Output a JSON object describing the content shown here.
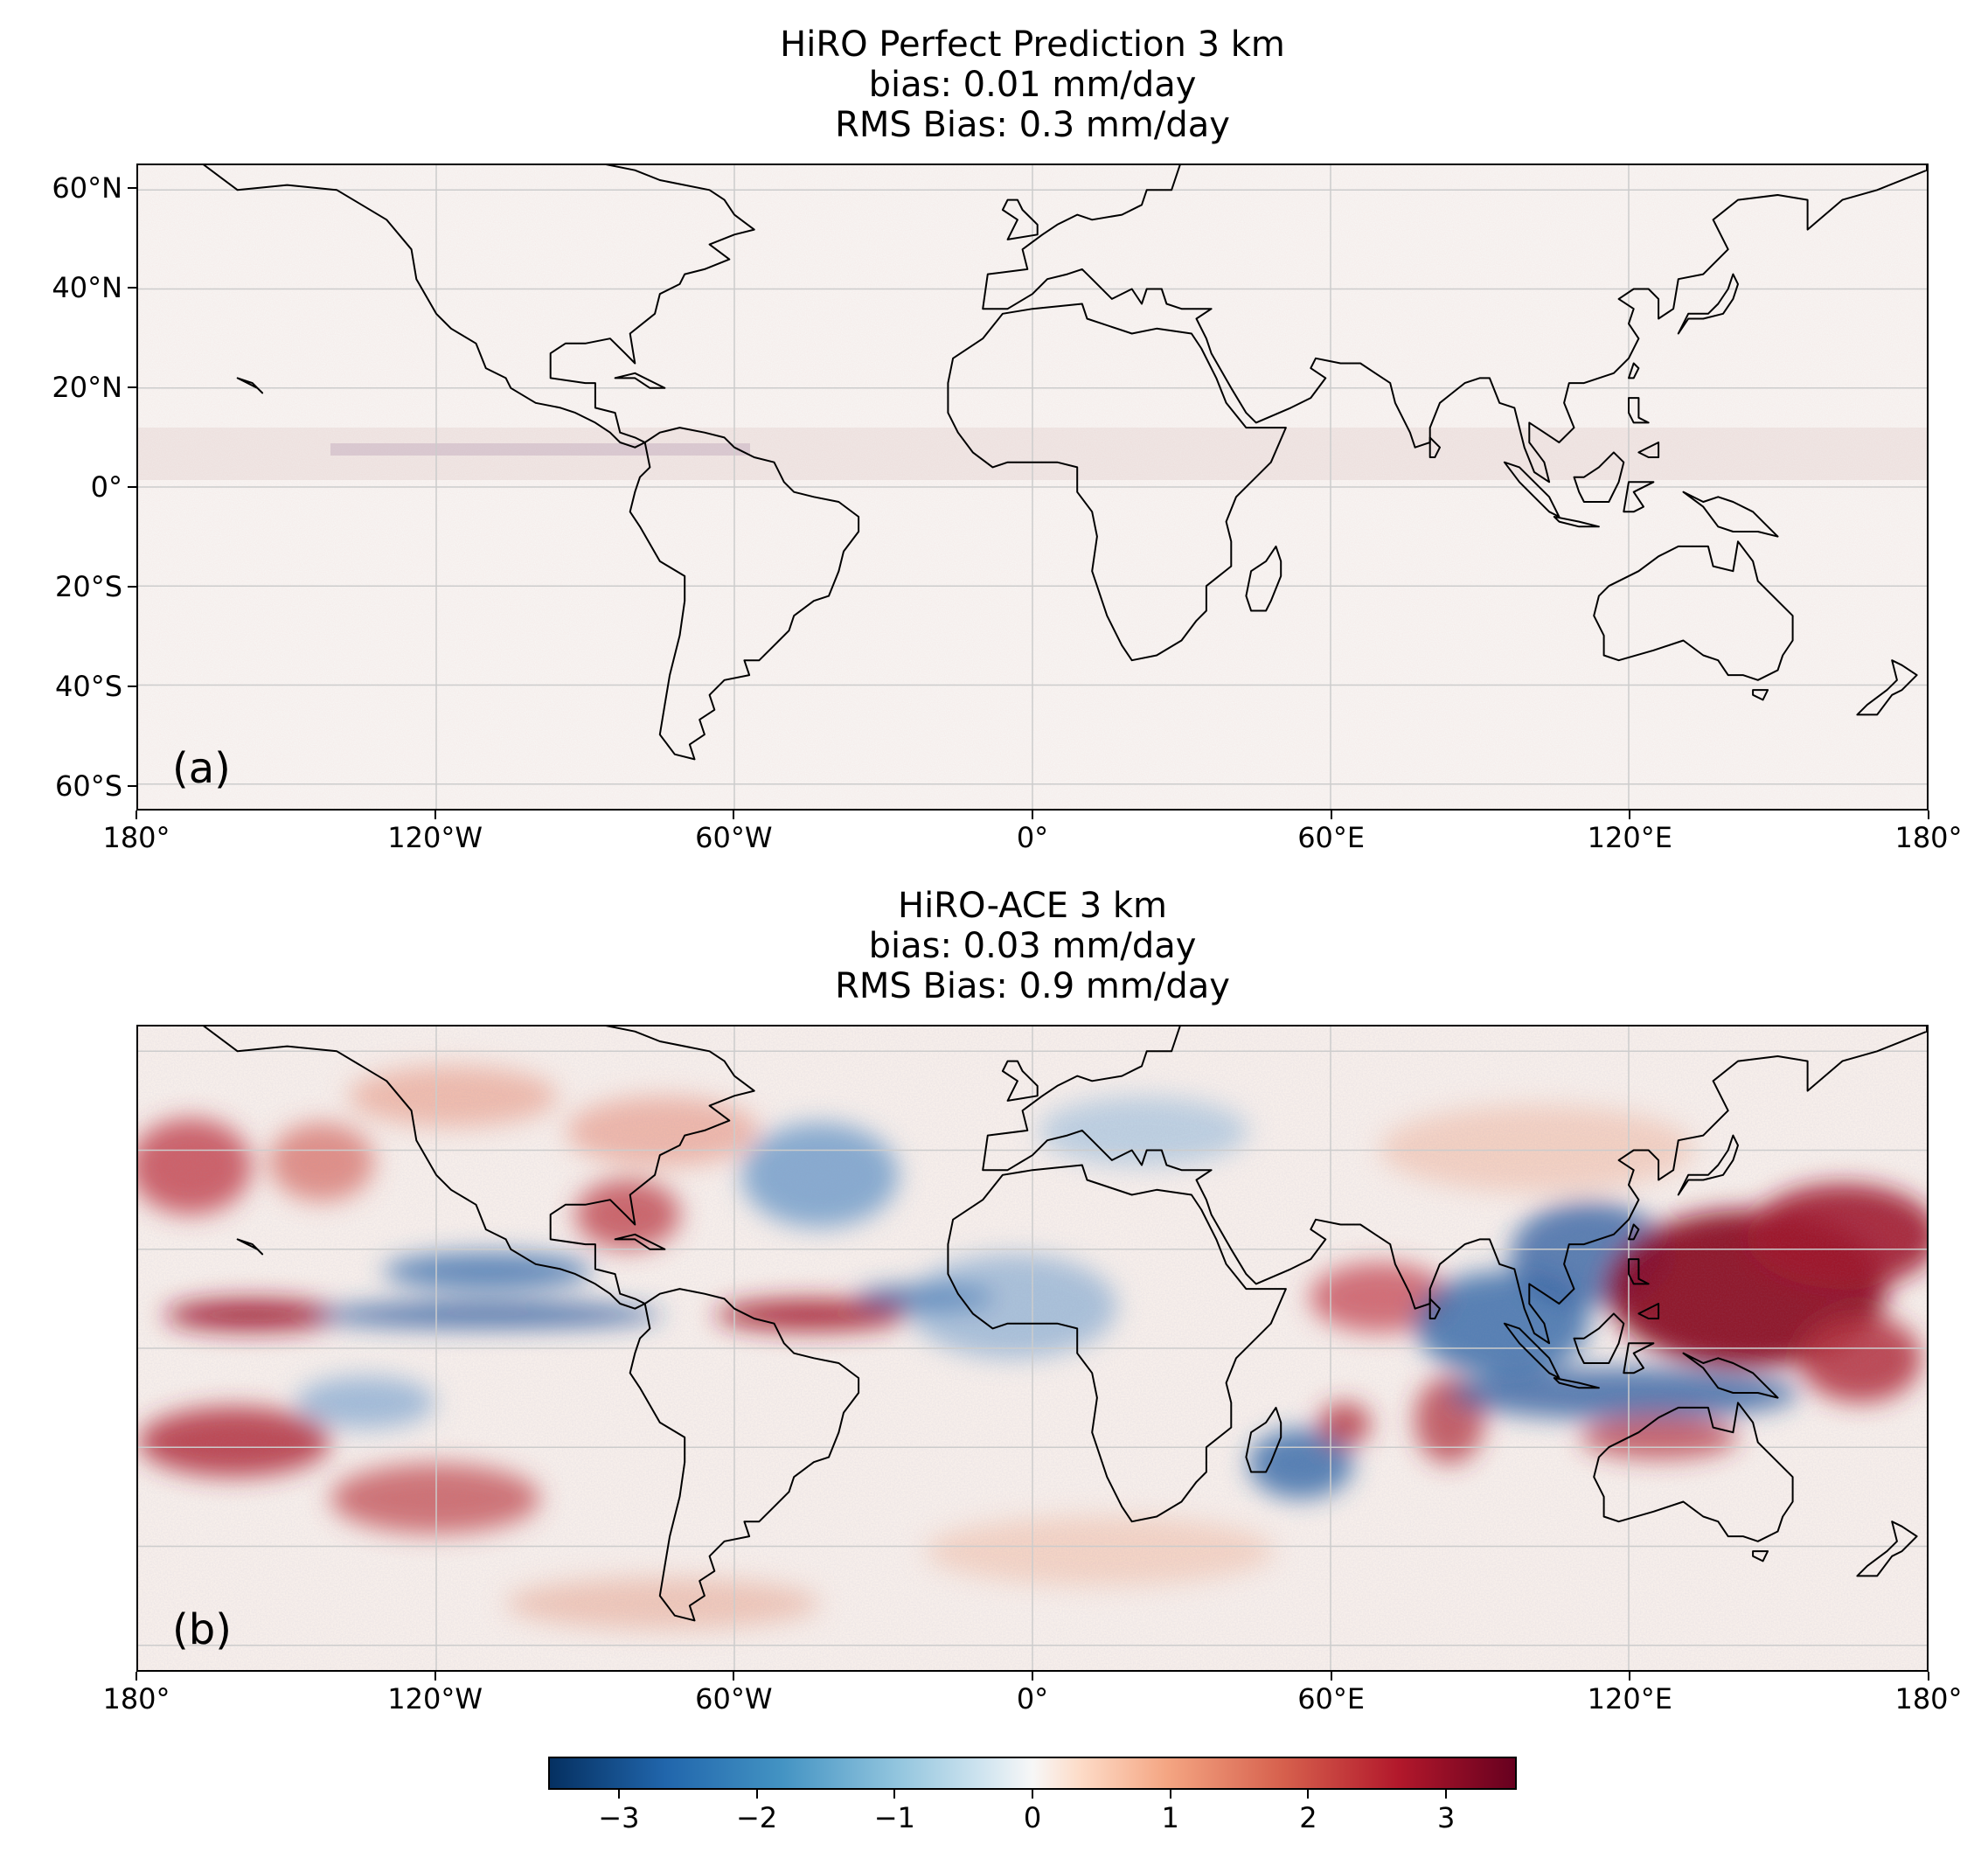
{
  "panels": [
    {
      "id": "a",
      "title_line1": "HiRO Perfect Prediction 3 km",
      "title_line2": "bias: 0.01 mm/day",
      "title_line3": "RMS Bias: 0.3 mm/day",
      "panel_label": "(a)",
      "show_lat_labels": true
    },
    {
      "id": "b",
      "title_line1": "HiRO-ACE 3 km",
      "title_line2": "bias: 0.03 mm/day",
      "title_line3": "RMS Bias: 0.9 mm/day",
      "panel_label": "(b)",
      "show_lat_labels": false
    }
  ],
  "lon_ticks": [
    "180°",
    "120°W",
    "60°W",
    "0°",
    "60°E",
    "120°E",
    "180°"
  ],
  "lat_ticks": [
    "60°N",
    "40°N",
    "20°N",
    "0°",
    "20°S",
    "40°S",
    "60°S"
  ],
  "colorbar": {
    "colormap": "RdBu_r",
    "range": [
      -3.5,
      3.5
    ],
    "ticks": [
      "−3",
      "−2",
      "−1",
      "0",
      "1",
      "2",
      "3"
    ]
  },
  "colors": {
    "background": "#f7f4f2",
    "negative": "#2166ac",
    "positive": "#b2182b",
    "coast": "#000000",
    "grid": "#cccccc"
  }
}
